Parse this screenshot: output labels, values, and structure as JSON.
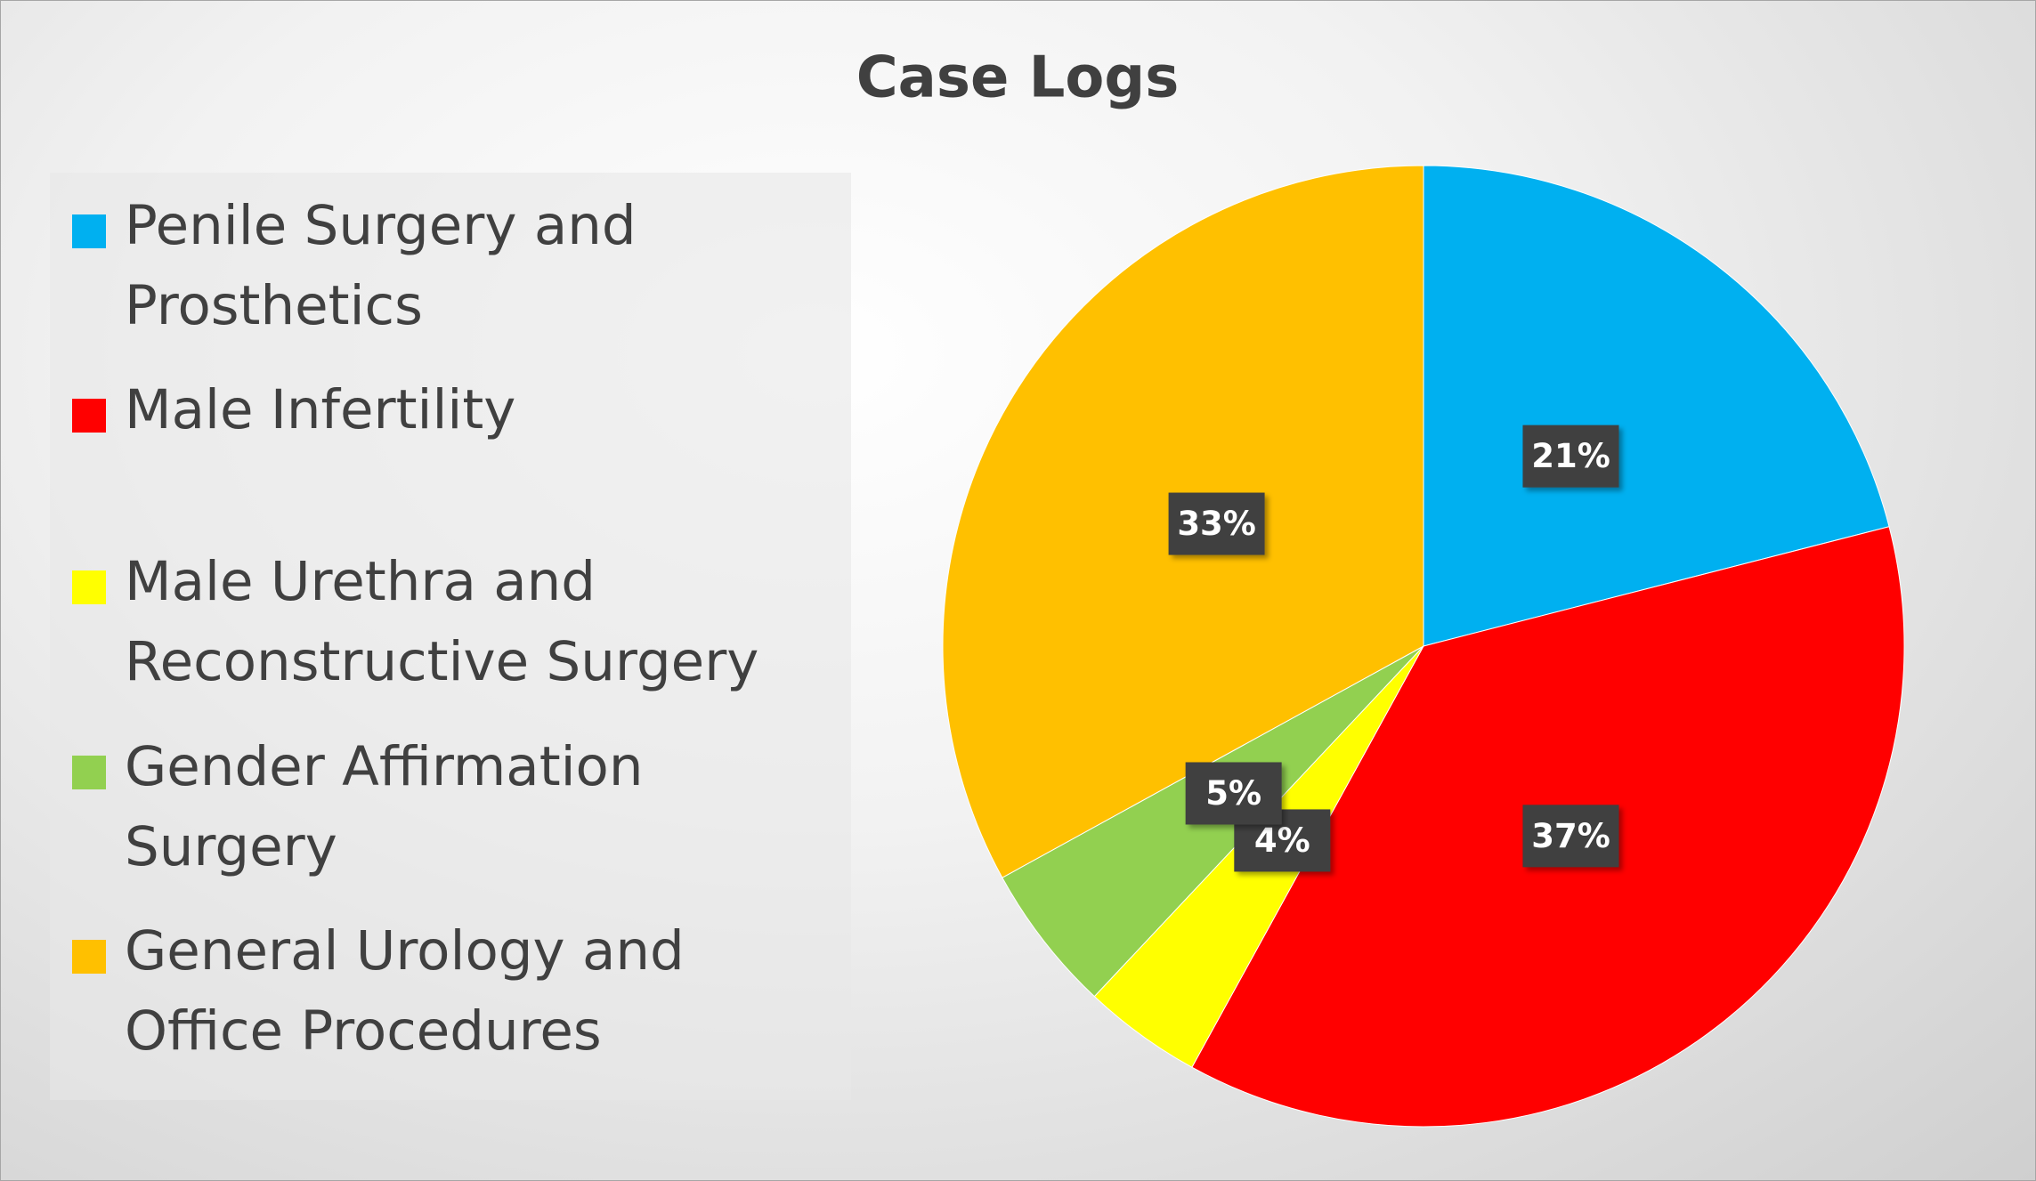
{
  "chart_data": {
    "type": "pie",
    "title": "Case Logs",
    "categories": [
      "Penile Surgery and Prosthetics",
      "Male Infertility",
      "Male Urethra and Reconstructive Surgery",
      "Gender Affirmation Surgery",
      "General Urology and Office Procedures"
    ],
    "values": [
      21,
      37,
      4,
      5,
      33
    ],
    "value_labels": [
      "21%",
      "37%",
      "4%",
      "5%",
      "33%"
    ],
    "colors": [
      "#00b0f0",
      "#ff0000",
      "#ffff00",
      "#92d050",
      "#ffc000"
    ],
    "legend": "left"
  }
}
